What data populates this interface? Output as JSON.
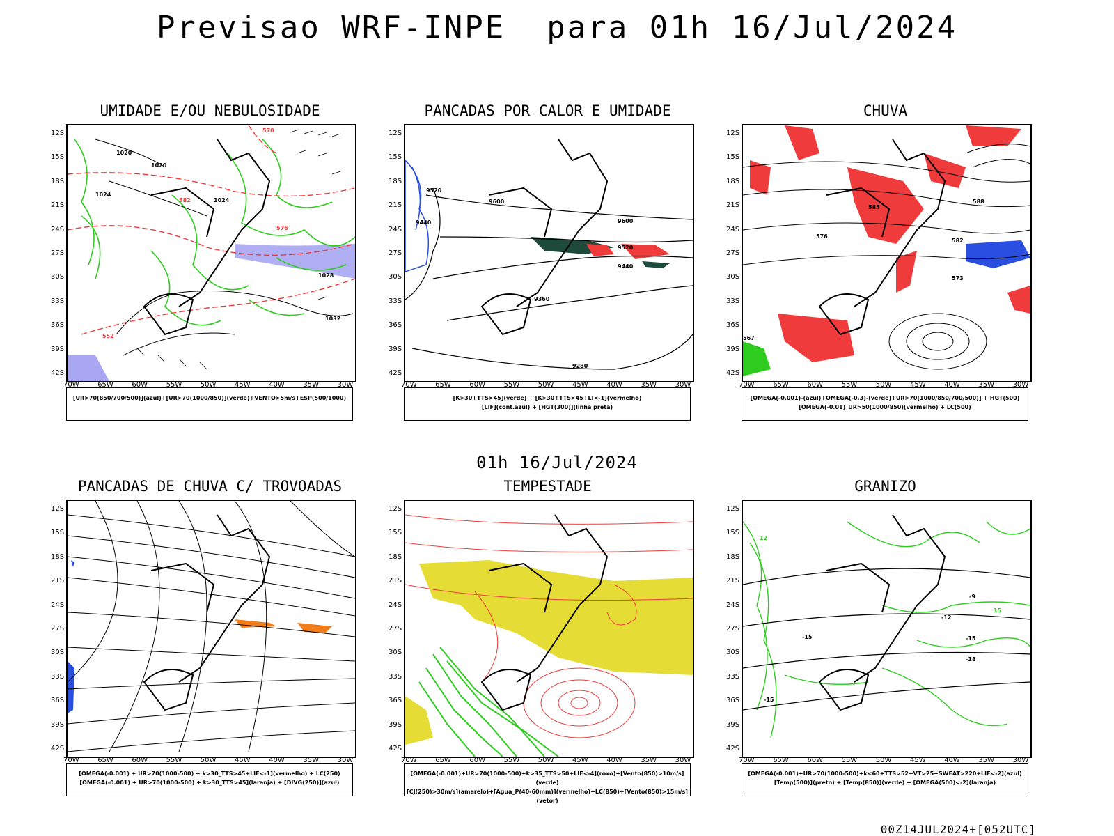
{
  "header": {
    "title": "Previsao WRF-INPE  para 01h 16/Jul/2024"
  },
  "mid_title": "01h 16/Jul/2024",
  "footer": "00Z14JUL2024+[052UTC]",
  "axes": {
    "lat_labels": [
      "12S",
      "15S",
      "18S",
      "21S",
      "24S",
      "27S",
      "30S",
      "33S",
      "36S",
      "39S",
      "42S"
    ],
    "lon_labels": [
      "70W",
      "65W",
      "60W",
      "55W",
      "50W",
      "45W",
      "40W",
      "35W",
      "30W"
    ]
  },
  "panels": [
    {
      "title": "UMIDADE E/OU NEBULOSIDADE",
      "legend": [
        "[UR>70(850/700/500)](azul)+[UR>70(1000/850)](verde)+VENTO>5m/s+ESP(500/1000)"
      ],
      "contour_labels": [
        "1020",
        "1020",
        "1024",
        "1024",
        "1028",
        "1032",
        "570",
        "576",
        "582",
        "552"
      ]
    },
    {
      "title": "PANCADAS POR CALOR E UMIDADE",
      "legend": [
        "[K>30+TTS>45](verde) + [K>30+TTS>45+LI<-1](vermelho)",
        "[LIF](cont.azul) + [HGT(300)](linha preta)"
      ],
      "contour_labels": [
        "9520",
        "9600",
        "9440",
        "9360",
        "9280",
        "9600",
        "9520",
        "9440"
      ]
    },
    {
      "title": "CHUVA",
      "legend": [
        "[OMEGA(-0.001)-(azul)+OMEGA(-0.3)-(verde)+UR>70(1000/850/700/500)] + HGT(500)",
        "[OMEGA(-0.01)_UR>50(1000/850)(vermelho) + LC(500)"
      ],
      "contour_labels": [
        "588",
        "582",
        "576",
        "573",
        "567",
        "585"
      ]
    },
    {
      "title": "PANCADAS DE CHUVA C/ TROVOADAS",
      "legend": [
        "[OMEGA(-0.001) + UR>70(1000-500) + k>30_TTS>45+LIF<-1](vermelho) + LC(250)",
        "[OMEGA(-0.001) + UR>70(1000-500) + k>30_TTS>45](laranja) + [DIVG(250)](azul)"
      ],
      "contour_labels": []
    },
    {
      "title": "TEMPESTADE",
      "legend": [
        "[OMEGA(-0.001)+UR>70(1000-500)+k>35_TTS>50+LIF<-4](roxo)+[Vento(850)>10m/s](verde)",
        "[CJ(250)>30m/s](amarelo)+[Agua_P(40-60mm)](vermelho)+LC(850)+[Vento(850)>15m/s](vetor)"
      ],
      "contour_labels": []
    },
    {
      "title": "GRANIZO",
      "legend": [
        "[OMEGA(-0.001)+UR>70(1000-500)+k<60+TTS>52+VT>25+SWEAT>220+LIF<-2](azul)",
        "[Temp(500)](preto) + [Temp(850)](verde) + [OMEGA(500)<-2](laranja)"
      ],
      "contour_labels": [
        "-9",
        "-12",
        "-15",
        "-15",
        "-18",
        "-15",
        "12",
        "15"
      ]
    }
  ],
  "colors": {
    "red": "#ef3b3b",
    "green": "#2ecc1f",
    "blue": "#2a4fe0",
    "lavender": "#a9a6f2",
    "yellow": "#e6dc36",
    "darkgreen": "#1d4a3a",
    "orange": "#f07d1a"
  }
}
